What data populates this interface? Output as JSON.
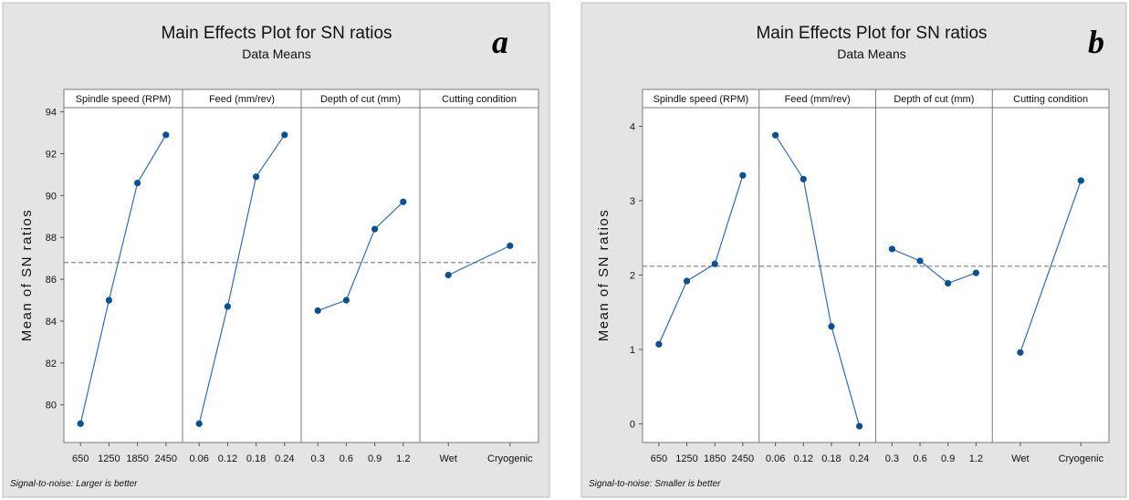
{
  "chart_data": [
    {
      "type": "line",
      "letter": "a",
      "title": "Main Effects Plot for SN ratios",
      "subtitle": "Data Means",
      "ylabel": "Mean of SN ratios",
      "footnote": "Signal-to-noise: Larger is better",
      "ylim": [
        78.2,
        94.2
      ],
      "yticks": [
        80,
        82,
        84,
        86,
        88,
        90,
        92,
        94
      ],
      "ytick_labels": [
        "80",
        "82",
        "84",
        "86",
        "88",
        "90",
        "92",
        "94"
      ],
      "reference_line": 86.8,
      "marker_color": "#0b4f97",
      "line_color": "#2f6db5",
      "panels": [
        {
          "name": "Spindle speed (RPM)",
          "categories": [
            "650",
            "1250",
            "1850",
            "2450"
          ],
          "values": [
            79.1,
            85.0,
            90.6,
            92.9
          ]
        },
        {
          "name": "Feed (mm/rev)",
          "categories": [
            "0.06",
            "0.12",
            "0.18",
            "0.24"
          ],
          "values": [
            79.1,
            84.7,
            90.9,
            92.9
          ]
        },
        {
          "name": "Depth of cut (mm)",
          "categories": [
            "0.3",
            "0.6",
            "0.9",
            "1.2"
          ],
          "values": [
            84.5,
            85.0,
            88.4,
            89.7
          ]
        },
        {
          "name": "Cutting condition",
          "categories": [
            "Wet",
            "Cryogenic"
          ],
          "values": [
            86.2,
            87.6
          ]
        }
      ]
    },
    {
      "type": "line",
      "letter": "b",
      "title": "Main Effects Plot for SN ratios",
      "subtitle": "Data Means",
      "ylabel": "Mean of SN ratios",
      "footnote": "Signal-to-noise: Smaller is better",
      "ylim": [
        -0.25,
        4.25
      ],
      "yticks": [
        0,
        1,
        2,
        3,
        4
      ],
      "ytick_labels": [
        "0",
        "1",
        "2",
        "3",
        "4"
      ],
      "reference_line": 2.12,
      "marker_color": "#0b4f97",
      "line_color": "#2f6db5",
      "panels": [
        {
          "name": "Spindle speed (RPM)",
          "categories": [
            "650",
            "1250",
            "1850",
            "2450"
          ],
          "values": [
            1.07,
            1.92,
            2.15,
            3.34
          ]
        },
        {
          "name": "Feed (mm/rev)",
          "categories": [
            "0.06",
            "0.12",
            "0.18",
            "0.24"
          ],
          "values": [
            3.88,
            3.29,
            1.31,
            -0.03
          ]
        },
        {
          "name": "Depth of cut (mm)",
          "categories": [
            "0.3",
            "0.6",
            "0.9",
            "1.2"
          ],
          "values": [
            2.35,
            2.19,
            1.89,
            2.03
          ]
        },
        {
          "name": "Cutting condition",
          "categories": [
            "Wet",
            "Cryogenic"
          ],
          "values": [
            0.96,
            3.27
          ]
        }
      ]
    }
  ]
}
